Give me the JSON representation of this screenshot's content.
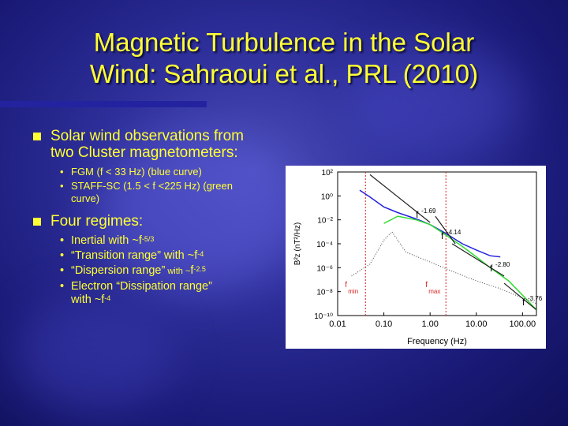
{
  "slide": {
    "title_line1": "Magnetic Turbulence in the Solar",
    "title_line2": "Wind: Sahraoui et al., PRL (2010)",
    "bullet1": {
      "text": "Solar wind observations from two Cluster magnetometers:",
      "subs": [
        "FGM (f < 33 Hz) (blue curve)",
        " STAFF-SC (1.5 < f <225 Hz) (green curve)"
      ]
    },
    "bullet2": {
      "text": "Four regimes:",
      "subs": [
        {
          "pre": "Inertial with ~f",
          "exp": "-5/3",
          "post": ""
        },
        {
          "pre": "“Transition range” with ~f",
          "exp": "-4",
          "post": ""
        },
        {
          "pre": "“Dispersion range”",
          "small": " with ~",
          "pre2": "f",
          "exp": "-2.5",
          "post": ""
        },
        {
          "pre": "Electron “Dissipation range” with ~f",
          "exp": "-4",
          "post": ""
        }
      ]
    }
  },
  "chart_data": {
    "type": "line",
    "xlabel": "Frequency (Hz)",
    "ylabel": "B²z (nT²/Hz)",
    "x_scale": "log",
    "y_scale": "log",
    "xlim": [
      0.01,
      200
    ],
    "ylim": [
      1e-10,
      100
    ],
    "x_ticks": [
      "0.01",
      "0.10",
      "1.00",
      "10.00",
      "100.00"
    ],
    "y_ticks": [
      "10⁻¹⁰",
      "10⁻⁸",
      "10⁻⁶",
      "10⁻⁴",
      "10⁻²",
      "10⁰",
      "10²"
    ],
    "series": [
      {
        "color": "#2222dd",
        "x": [
          0.03,
          0.05,
          0.1,
          0.2,
          0.5,
          1,
          2,
          5,
          10,
          20,
          33
        ],
        "y": [
          3,
          0.8,
          0.12,
          0.04,
          0.012,
          0.004,
          0.0009,
          0.0001,
          3e-05,
          1e-05,
          8e-06
        ]
      },
      {
        "color": "#33dd33",
        "x": [
          0.1,
          0.2,
          0.5,
          1,
          2,
          5,
          10,
          20,
          50,
          100,
          200
        ],
        "y": [
          0.005,
          0.02,
          0.01,
          0.004,
          0.0007,
          6e-05,
          8e-06,
          1e-06,
          8e-08,
          5e-09,
          3e-10
        ]
      },
      {
        "color": "#444444",
        "dashed": true,
        "x": [
          0.02,
          0.05,
          0.1,
          0.15,
          0.3,
          1,
          3,
          10,
          30,
          100,
          200
        ],
        "y": [
          2e-07,
          2e-06,
          0.0002,
          0.001,
          2e-05,
          3e-06,
          5e-07,
          8e-08,
          2e-08,
          3e-09,
          1e-09
        ]
      }
    ],
    "fit_lines": [
      {
        "label": "f",
        "exp": "-1.69",
        "x": [
          0.05,
          1
        ],
        "y": [
          60,
          0.006
        ]
      },
      {
        "label": "f",
        "exp": "-4.14",
        "x": [
          1.3,
          3.5
        ],
        "y": [
          0.02,
          0.0001
        ]
      },
      {
        "label": "f",
        "exp": "-2.80",
        "x": [
          3,
          40
        ],
        "y": [
          0.0001,
          2e-07
        ]
      },
      {
        "label": "f",
        "exp": "-3.76",
        "x": [
          40,
          200
        ],
        "y": [
          5e-08,
          3e-10
        ]
      }
    ],
    "markers": [
      {
        "label": "f",
        "sub": "min",
        "x": 0.04,
        "color": "#dd2222"
      },
      {
        "label": "f",
        "sub": "max",
        "x": 2.2,
        "color": "#dd2222"
      }
    ]
  }
}
